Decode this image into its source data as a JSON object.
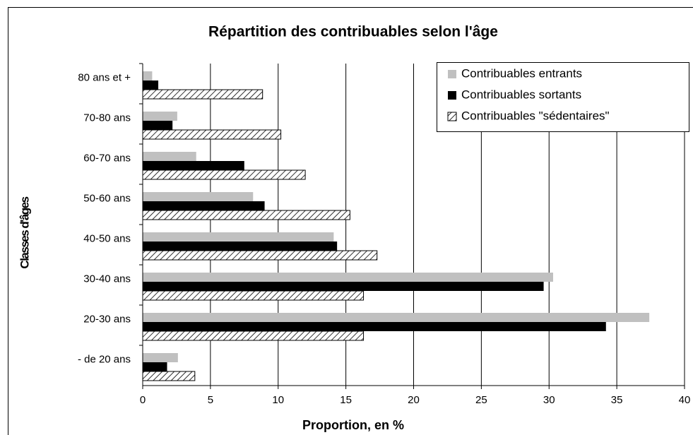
{
  "chart_data": {
    "type": "hbar",
    "title": "Répartition des contribuables selon l'âge",
    "x_label": "Proportion, en %",
    "y_label": "Classes d'âges",
    "categories": [
      "80 ans et +",
      "70-80 ans",
      "60-70 ans",
      "50-60 ans",
      "40-50 ans",
      "30-40 ans",
      "20-30 ans",
      "- de 20 ans"
    ],
    "series": [
      {
        "name": "Contribuables entrants",
        "color": "#c0c0c0",
        "values": [
          0.7,
          2.55,
          3.95,
          8.15,
          14.1,
          30.3,
          37.4,
          2.6
        ]
      },
      {
        "name": "Contribuables sortants",
        "color": "#000000",
        "values": [
          1.15,
          2.2,
          7.5,
          9.0,
          14.35,
          29.6,
          34.2,
          1.8
        ]
      },
      {
        "name": "Contribuables \"sédentaires\"",
        "color": "#000000",
        "hatch": true,
        "values": [
          8.85,
          10.2,
          12.0,
          15.3,
          17.3,
          16.3,
          16.3,
          3.85
        ]
      }
    ],
    "xlim": [
      0,
      40
    ],
    "xticks": [
      0,
      5,
      10,
      15,
      20,
      25,
      30,
      35,
      40
    ],
    "grid": true,
    "legend": "top-right"
  }
}
